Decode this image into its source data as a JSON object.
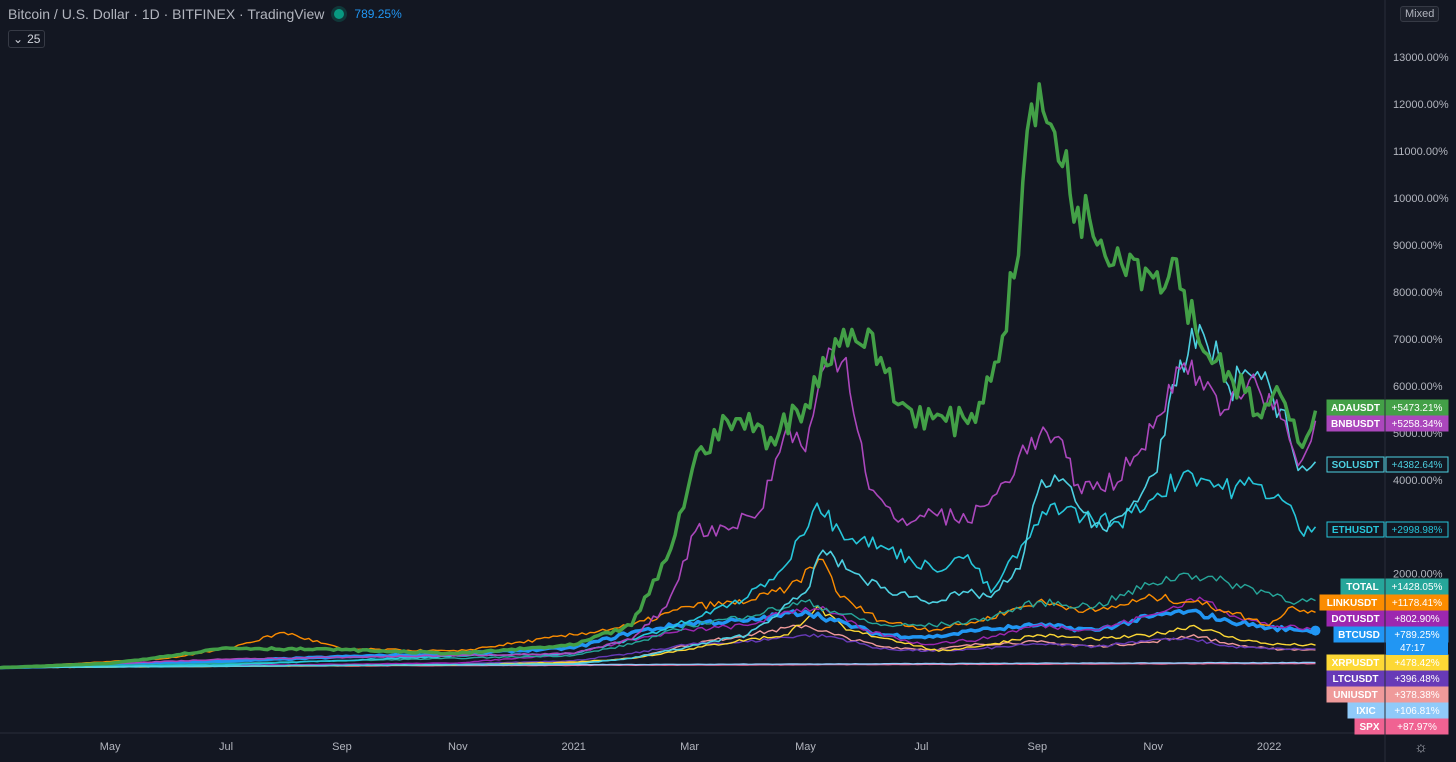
{
  "header": {
    "title": "Bitcoin / U.S. Dollar · 1D · BITFINEX · TradingView",
    "value": "789.25%",
    "interval_label": "25",
    "scale_mode": "Mixed"
  },
  "colors": {
    "background": "#131722",
    "grid_text": "#b2b5be",
    "axis_line": "#2a2e39"
  },
  "icons": {
    "interval": "chevron-down-icon",
    "settings": "sun-gear-icon"
  },
  "chart_data": {
    "type": "line",
    "x_axis_ticks": [
      "May",
      "Jul",
      "Sep",
      "Nov",
      "2021",
      "Mar",
      "May",
      "Jul",
      "Sep",
      "Nov",
      "2022"
    ],
    "x_axis_tick_positions_months": [
      1,
      3,
      5,
      7,
      9,
      11,
      13,
      15,
      17,
      19,
      21
    ],
    "x_range_months": [
      -0.9,
      23
    ],
    "y_axis_unit": "%",
    "y_ticks": [
      "13000.00%",
      "12000.00%",
      "11000.00%",
      "10000.00%",
      "9000.00%",
      "8000.00%",
      "7000.00%",
      "6000.00%",
      "5000.00%",
      "4000.00%",
      "2000.00%"
    ],
    "y_tick_values": [
      13000,
      12000,
      11000,
      10000,
      9000,
      8000,
      7000,
      6000,
      5000,
      4000,
      2000
    ],
    "ylim": [
      -50,
      14000
    ],
    "grid": false,
    "legend": "right-axis-labels",
    "series": [
      {
        "name": "ADAUSDT",
        "label": "+5473.21%",
        "color": "#43a047",
        "width": 3.5,
        "points": [
          [
            -0.9,
            0
          ],
          [
            1,
            90
          ],
          [
            2,
            250
          ],
          [
            3,
            420
          ],
          [
            5,
            380
          ],
          [
            7,
            300
          ],
          [
            9,
            480
          ],
          [
            10,
            900
          ],
          [
            10.6,
            2300
          ],
          [
            11.2,
            4700
          ],
          [
            11.8,
            5300
          ],
          [
            12.4,
            4900
          ],
          [
            13,
            5600
          ],
          [
            13.3,
            6600
          ],
          [
            13.8,
            7200
          ],
          [
            14.3,
            6600
          ],
          [
            14.6,
            5600
          ],
          [
            15.2,
            5300
          ],
          [
            15.8,
            5200
          ],
          [
            16.2,
            6100
          ],
          [
            16.6,
            8300
          ],
          [
            16.9,
            12000
          ],
          [
            17.3,
            11400
          ],
          [
            17.7,
            9800
          ],
          [
            18.1,
            9100
          ],
          [
            18.6,
            8800
          ],
          [
            19,
            8300
          ],
          [
            19.4,
            8700
          ],
          [
            19.8,
            6900
          ],
          [
            20.3,
            6300
          ],
          [
            20.8,
            5400
          ],
          [
            21.2,
            5800
          ],
          [
            21.5,
            4800
          ],
          [
            21.8,
            5473
          ]
        ]
      },
      {
        "name": "BNBUSDT",
        "label": "+5258.34%",
        "color": "#ab47bc",
        "width": 1.6,
        "points": [
          [
            -0.9,
            0
          ],
          [
            3,
            180
          ],
          [
            7,
            260
          ],
          [
            9,
            300
          ],
          [
            10,
            600
          ],
          [
            10.6,
            1300
          ],
          [
            11.1,
            2900
          ],
          [
            11.6,
            3000
          ],
          [
            12.2,
            3300
          ],
          [
            12.7,
            5200
          ],
          [
            13,
            4600
          ],
          [
            13.4,
            6800
          ],
          [
            13.7,
            6600
          ],
          [
            14.1,
            3800
          ],
          [
            14.6,
            3100
          ],
          [
            15.2,
            3300
          ],
          [
            15.8,
            3100
          ],
          [
            16.3,
            3700
          ],
          [
            16.9,
            4900
          ],
          [
            17.3,
            4900
          ],
          [
            17.7,
            3900
          ],
          [
            18.1,
            3800
          ],
          [
            18.6,
            4300
          ],
          [
            19,
            5100
          ],
          [
            19.4,
            6400
          ],
          [
            19.8,
            6200
          ],
          [
            20.3,
            5500
          ],
          [
            20.8,
            6000
          ],
          [
            21.2,
            5300
          ],
          [
            21.5,
            4300
          ],
          [
            21.8,
            5258
          ]
        ]
      },
      {
        "name": "SOLUSDT",
        "label": "+4382.64%",
        "color": "#4dd0e1",
        "width": 1.6,
        "points": [
          [
            -0.9,
            0
          ],
          [
            9,
            80
          ],
          [
            10,
            200
          ],
          [
            11,
            450
          ],
          [
            12,
            700
          ],
          [
            13,
            1600
          ],
          [
            13.3,
            2500
          ],
          [
            13.7,
            2100
          ],
          [
            14.3,
            1700
          ],
          [
            15.2,
            1400
          ],
          [
            15.8,
            1600
          ],
          [
            16.2,
            1500
          ],
          [
            16.7,
            2100
          ],
          [
            17,
            3700
          ],
          [
            17.3,
            4100
          ],
          [
            17.8,
            3300
          ],
          [
            18.2,
            2900
          ],
          [
            18.6,
            3400
          ],
          [
            19,
            4100
          ],
          [
            19.4,
            6000
          ],
          [
            19.8,
            7300
          ],
          [
            20.3,
            6000
          ],
          [
            20.8,
            6300
          ],
          [
            21.2,
            5500
          ],
          [
            21.5,
            4200
          ],
          [
            21.8,
            4383
          ]
        ]
      },
      {
        "name": "ETHUSDT",
        "label": "+2998.98%",
        "color": "#26c6da",
        "width": 1.6,
        "points": [
          [
            -0.9,
            0
          ],
          [
            3,
            60
          ],
          [
            7,
            250
          ],
          [
            9,
            300
          ],
          [
            10,
            600
          ],
          [
            11,
            1000
          ],
          [
            12,
            1500
          ],
          [
            12.6,
            2100
          ],
          [
            13.2,
            3500
          ],
          [
            13.6,
            2900
          ],
          [
            14.3,
            2600
          ],
          [
            15.2,
            2100
          ],
          [
            15.8,
            2400
          ],
          [
            16.2,
            1600
          ],
          [
            16.8,
            2700
          ],
          [
            17.3,
            3500
          ],
          [
            17.8,
            3200
          ],
          [
            18.4,
            3100
          ],
          [
            19,
            3600
          ],
          [
            19.6,
            4200
          ],
          [
            20.2,
            3800
          ],
          [
            20.8,
            3900
          ],
          [
            21.3,
            3500
          ],
          [
            21.6,
            2800
          ],
          [
            21.8,
            2999
          ]
        ]
      },
      {
        "name": "TOTAL",
        "label": "+1428.05%",
        "color": "#26a69a",
        "width": 1.4,
        "points": [
          [
            -0.9,
            0
          ],
          [
            3,
            90
          ],
          [
            7,
            200
          ],
          [
            9,
            260
          ],
          [
            10,
            500
          ],
          [
            11,
            900
          ],
          [
            12,
            1100
          ],
          [
            13,
            1400
          ],
          [
            13.5,
            1200
          ],
          [
            14.3,
            900
          ],
          [
            15.2,
            900
          ],
          [
            16,
            1000
          ],
          [
            17,
            1400
          ],
          [
            18,
            1300
          ],
          [
            19,
            1800
          ],
          [
            19.6,
            2000
          ],
          [
            20.3,
            1800
          ],
          [
            21,
            1600
          ],
          [
            21.5,
            1400
          ],
          [
            21.8,
            1428
          ]
        ]
      },
      {
        "name": "LINKUSDT",
        "label": "+1178.41%",
        "color": "#fb8c00",
        "width": 1.4,
        "points": [
          [
            -0.9,
            0
          ],
          [
            2,
            200
          ],
          [
            3,
            400
          ],
          [
            4,
            750
          ],
          [
            5,
            400
          ],
          [
            7,
            350
          ],
          [
            9,
            700
          ],
          [
            10,
            900
          ],
          [
            11,
            1300
          ],
          [
            12,
            1400
          ],
          [
            12.7,
            1700
          ],
          [
            13.3,
            2300
          ],
          [
            13.6,
            1500
          ],
          [
            14.3,
            1000
          ],
          [
            15.2,
            800
          ],
          [
            16,
            1000
          ],
          [
            17,
            1400
          ],
          [
            18,
            1200
          ],
          [
            19,
            1500
          ],
          [
            19.7,
            1400
          ],
          [
            20.3,
            1200
          ],
          [
            21,
            900
          ],
          [
            21.4,
            1300
          ],
          [
            21.8,
            1178
          ]
        ]
      },
      {
        "name": "DOTUSDT",
        "label": "+802.90%",
        "color": "#9c27b0",
        "width": 1.4,
        "points": [
          [
            -0.9,
            0
          ],
          [
            7,
            100
          ],
          [
            9,
            300
          ],
          [
            10,
            600
          ],
          [
            11,
            800
          ],
          [
            12,
            900
          ],
          [
            12.7,
            1200
          ],
          [
            13.3,
            1300
          ],
          [
            14,
            800
          ],
          [
            15,
            500
          ],
          [
            16,
            600
          ],
          [
            17,
            900
          ],
          [
            18,
            800
          ],
          [
            19.2,
            1200
          ],
          [
            19.8,
            1500
          ],
          [
            20.4,
            1100
          ],
          [
            21,
            900
          ],
          [
            21.8,
            803
          ]
        ]
      },
      {
        "name": "BTCUSD",
        "label": "+789.25%",
        "color": "#2196f3",
        "width": 3.5,
        "points": [
          [
            -0.9,
            0
          ],
          [
            1,
            60
          ],
          [
            3,
            140
          ],
          [
            5,
            230
          ],
          [
            7,
            300
          ],
          [
            9,
            420
          ],
          [
            10,
            750
          ],
          [
            11,
            950
          ],
          [
            12,
            1000
          ],
          [
            13,
            1200
          ],
          [
            13.5,
            1000
          ],
          [
            14.3,
            700
          ],
          [
            15.2,
            650
          ],
          [
            16,
            800
          ],
          [
            17,
            900
          ],
          [
            18,
            800
          ],
          [
            19,
            1100
          ],
          [
            19.6,
            1200
          ],
          [
            20.3,
            1000
          ],
          [
            21,
            850
          ],
          [
            21.5,
            800
          ],
          [
            21.8,
            789
          ]
        ]
      },
      {
        "name": "XRPUSDT",
        "label": "+478.42%",
        "color": "#fdd835",
        "width": 1.4,
        "points": [
          [
            -0.9,
            0
          ],
          [
            7,
            60
          ],
          [
            9,
            120
          ],
          [
            10,
            200
          ],
          [
            11,
            400
          ],
          [
            12,
            600
          ],
          [
            12.7,
            700
          ],
          [
            13.2,
            1300
          ],
          [
            13.7,
            800
          ],
          [
            14.5,
            600
          ],
          [
            15.3,
            350
          ],
          [
            16.2,
            500
          ],
          [
            17,
            700
          ],
          [
            18,
            600
          ],
          [
            19,
            700
          ],
          [
            19.7,
            900
          ],
          [
            20.3,
            650
          ],
          [
            21,
            500
          ],
          [
            21.8,
            478
          ]
        ]
      },
      {
        "name": "LTCUSDT",
        "label": "+396.48%",
        "color": "#673ab7",
        "width": 1.4,
        "points": [
          [
            -0.9,
            0
          ],
          [
            7,
            80
          ],
          [
            9,
            150
          ],
          [
            10,
            300
          ],
          [
            11,
            500
          ],
          [
            12,
            550
          ],
          [
            13,
            700
          ],
          [
            13.5,
            650
          ],
          [
            14.3,
            400
          ],
          [
            15.2,
            350
          ],
          [
            16,
            400
          ],
          [
            17,
            500
          ],
          [
            18,
            450
          ],
          [
            19,
            600
          ],
          [
            19.7,
            600
          ],
          [
            20.3,
            450
          ],
          [
            21,
            400
          ],
          [
            21.8,
            396
          ]
        ]
      },
      {
        "name": "UNIUSDT",
        "label": "+378.38%",
        "color": "#ef9a9a",
        "width": 1.4,
        "points": [
          [
            -0.9,
            0
          ],
          [
            9,
            100
          ],
          [
            10,
            200
          ],
          [
            11,
            500
          ],
          [
            12,
            700
          ],
          [
            13,
            900
          ],
          [
            13.5,
            700
          ],
          [
            14.3,
            450
          ],
          [
            15.2,
            380
          ],
          [
            16,
            500
          ],
          [
            17,
            550
          ],
          [
            18,
            450
          ],
          [
            19,
            550
          ],
          [
            19.7,
            700
          ],
          [
            20.3,
            500
          ],
          [
            21,
            400
          ],
          [
            21.8,
            378
          ]
        ]
      },
      {
        "name": "IXIC",
        "label": "+106.81%",
        "color": "#90caf9",
        "width": 1.4,
        "points": [
          [
            -0.9,
            0
          ],
          [
            3,
            40
          ],
          [
            7,
            55
          ],
          [
            11,
            70
          ],
          [
            15,
            85
          ],
          [
            19,
            100
          ],
          [
            21.8,
            107
          ]
        ]
      },
      {
        "name": "SPX",
        "label": "+87.97%",
        "color": "#f06292",
        "width": 1.4,
        "points": [
          [
            -0.9,
            0
          ],
          [
            3,
            30
          ],
          [
            7,
            45
          ],
          [
            11,
            55
          ],
          [
            15,
            70
          ],
          [
            19,
            82
          ],
          [
            21.8,
            88
          ]
        ]
      }
    ],
    "extra_labels": {
      "BTCUSD": "47:17"
    }
  }
}
